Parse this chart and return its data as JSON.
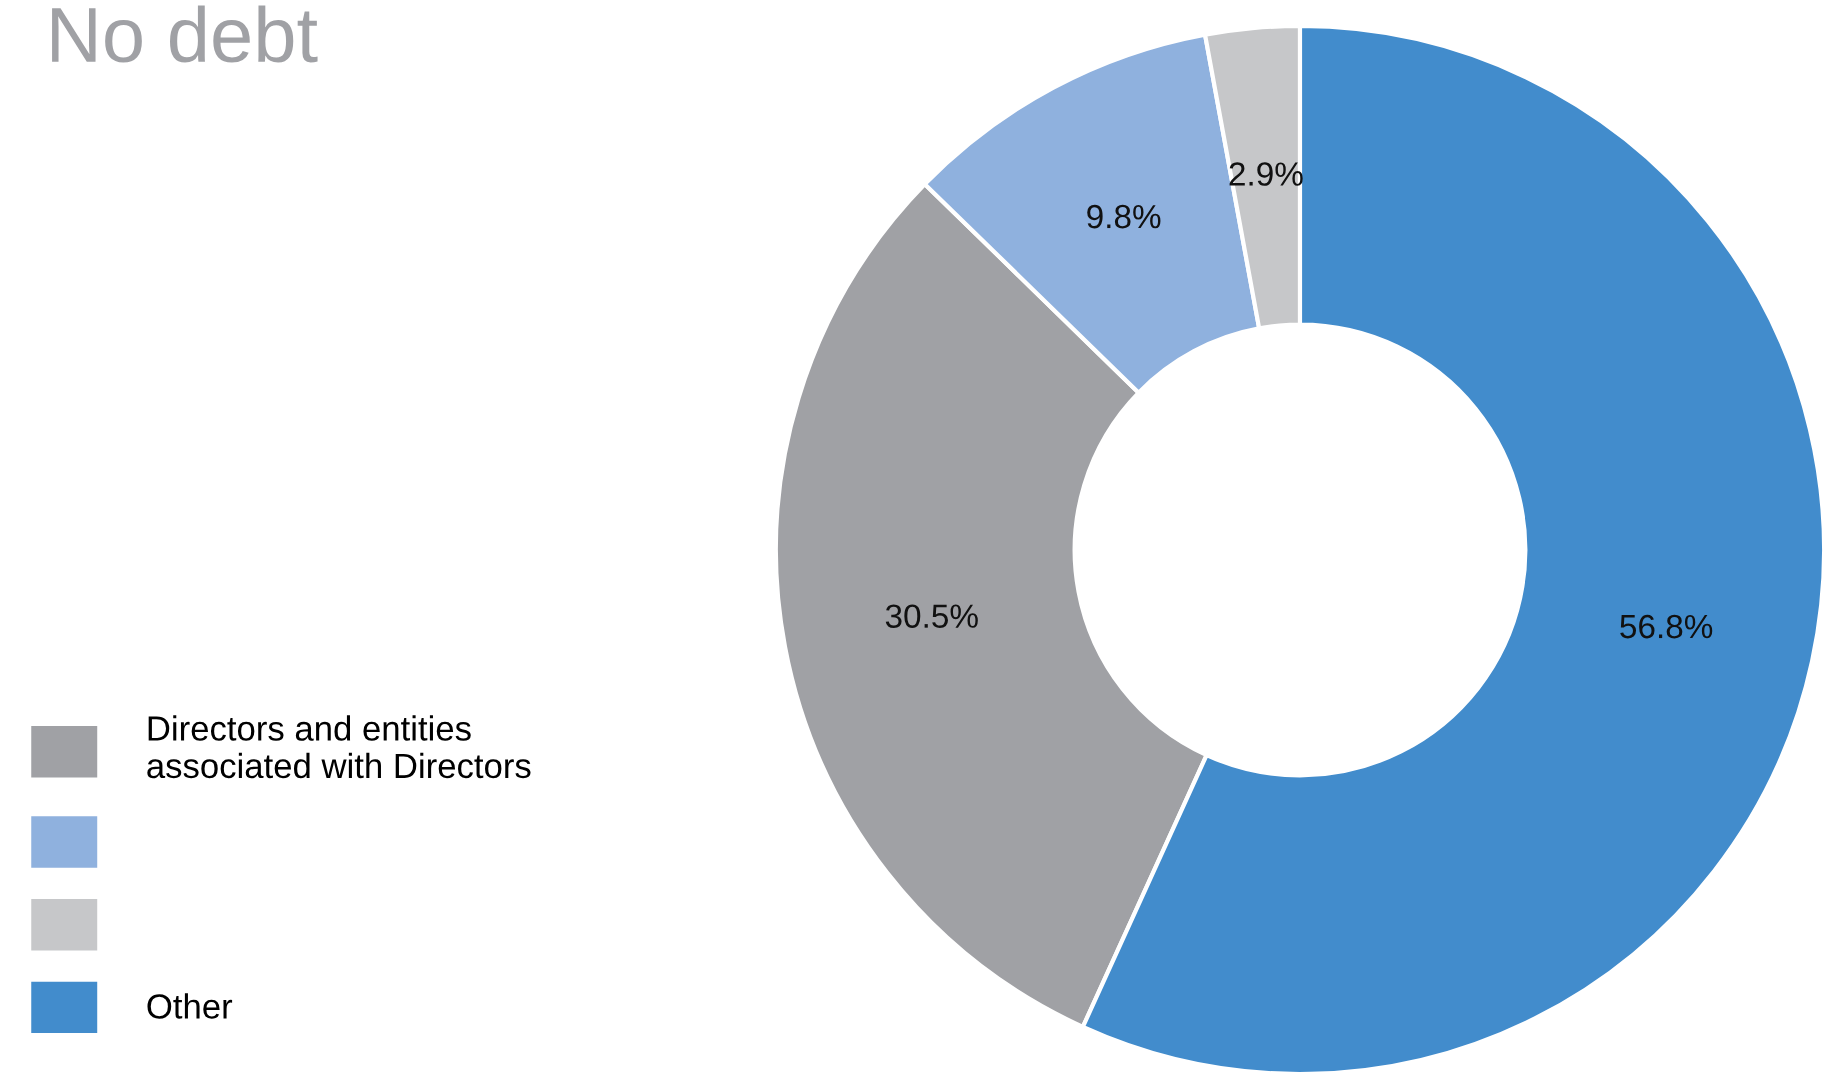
{
  "chart_data": {
    "type": "donut",
    "title": "No debt",
    "categories": [
      "Directors and entities\nassociated with Directors",
      null,
      null,
      "Other"
    ],
    "values": [
      30.5,
      9.8,
      2.9,
      56.8
    ],
    "colors": [
      "#a0a1a5",
      "#8fb1de",
      "#c6c7c9",
      "#428ccc"
    ],
    "value_labels": [
      "30.5%",
      "9.8%",
      "2.9%",
      "56.8%"
    ],
    "legend": "bottom left"
  }
}
